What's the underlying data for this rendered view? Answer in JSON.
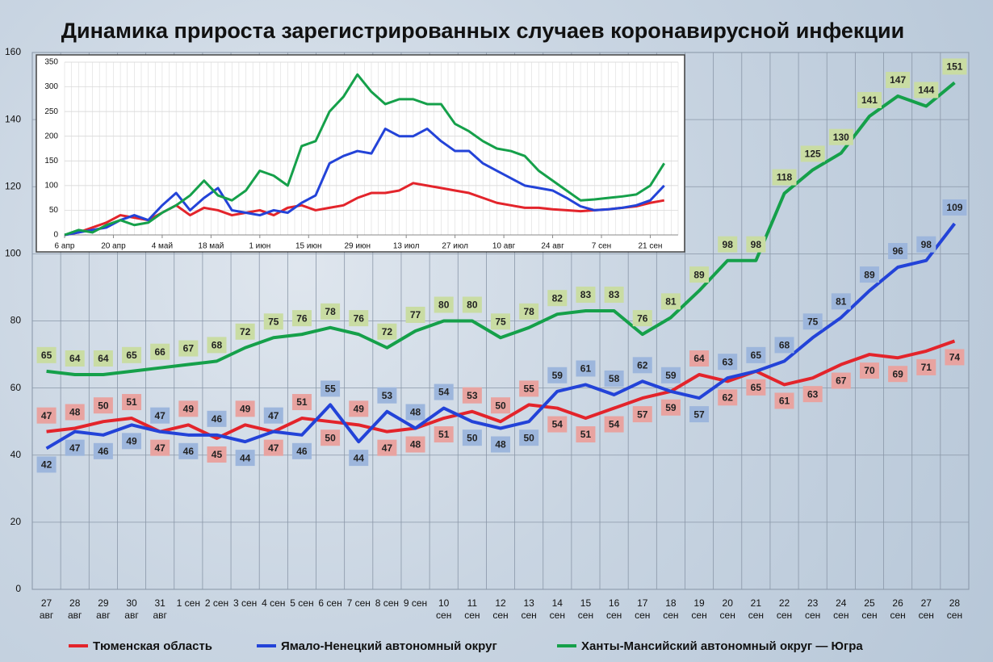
{
  "chart_data": [
    {
      "type": "line",
      "title": "Динамика прироста зарегистрированных случаев коронавирусной инфекции",
      "categories": [
        "27\nавг",
        "28\nавг",
        "29\nавг",
        "30\nавг",
        "31\nавг",
        "1 сен",
        "2 сен",
        "3 сен",
        "4 сен",
        "5 сен",
        "6 сен",
        "7 сен",
        "8 сен",
        "9 сен",
        "10\nсен",
        "11\nсен",
        "12\nсен",
        "13\nсен",
        "14\nсен",
        "15\nсен",
        "16\nсен",
        "17\nсен",
        "18\nсен",
        "19\nсен",
        "20\nсен",
        "21\nсен",
        "22\nсен",
        "23\nсен",
        "24\nсен",
        "25\nсен",
        "26\nсен",
        "27\nсен",
        "28\nсен"
      ],
      "series": [
        {
          "name": "Тюменская область",
          "color": "#e3242b",
          "label_color": "#e8a3a0",
          "values": [
            47,
            48,
            50,
            51,
            47,
            49,
            45,
            49,
            47,
            51,
            50,
            49,
            47,
            48,
            51,
            53,
            50,
            55,
            54,
            51,
            54,
            57,
            59,
            64,
            62,
            65,
            61,
            63,
            67,
            70,
            69,
            71,
            74
          ]
        },
        {
          "name": "Ямало-Ненецкий автономный округ",
          "color": "#2343d8",
          "label_color": "#9db6dc",
          "values": [
            42,
            47,
            46,
            49,
            47,
            46,
            46,
            44,
            47,
            46,
            55,
            44,
            53,
            48,
            54,
            50,
            48,
            50,
            59,
            61,
            58,
            62,
            59,
            57,
            63,
            65,
            68,
            75,
            81,
            89,
            96,
            98,
            109
          ]
        },
        {
          "name": "Ханты-Мансийский автономный округ — Югра",
          "color": "#15a04a",
          "label_color": "#c9dca3",
          "values": [
            65,
            64,
            64,
            65,
            66,
            67,
            68,
            72,
            75,
            76,
            78,
            76,
            72,
            77,
            80,
            80,
            75,
            78,
            82,
            83,
            83,
            76,
            81,
            89,
            98,
            98,
            118,
            125,
            130,
            141,
            147,
            144,
            151
          ]
        }
      ],
      "ylim": [
        0,
        160
      ],
      "yticks": [
        0,
        20,
        40,
        60,
        80,
        100,
        120,
        140,
        160
      ],
      "grid": true,
      "legend": "bottom"
    },
    {
      "type": "line",
      "x": [
        0,
        4,
        8,
        12,
        16,
        20,
        24,
        28,
        32,
        36,
        40,
        44,
        48,
        52,
        56,
        60,
        64,
        68,
        72,
        76,
        80,
        84,
        88,
        92,
        96,
        100,
        104,
        108,
        112,
        116,
        120,
        124,
        128,
        132,
        136,
        140,
        144,
        148,
        152,
        156,
        160,
        164,
        168,
        172
      ],
      "series": [
        {
          "name": "Тюменская область",
          "color": "#e3242b",
          "values": [
            0,
            5,
            15,
            25,
            40,
            35,
            30,
            45,
            60,
            40,
            55,
            50,
            40,
            45,
            50,
            40,
            55,
            60,
            50,
            55,
            60,
            75,
            85,
            85,
            90,
            105,
            100,
            95,
            90,
            85,
            75,
            65,
            60,
            55,
            55,
            52,
            50,
            48,
            50,
            52,
            55,
            58,
            65,
            70
          ]
        },
        {
          "name": "Ямало-Ненецкий автономный округ",
          "color": "#2343d8",
          "values": [
            0,
            5,
            10,
            15,
            30,
            40,
            30,
            60,
            85,
            50,
            75,
            95,
            50,
            45,
            40,
            50,
            45,
            65,
            80,
            145,
            160,
            170,
            165,
            215,
            200,
            200,
            215,
            190,
            170,
            170,
            145,
            130,
            115,
            100,
            95,
            90,
            75,
            58,
            50,
            52,
            55,
            60,
            70,
            100
          ]
        },
        {
          "name": "Ханты-Мансийский автономный округ — Югра",
          "color": "#15a04a",
          "values": [
            0,
            10,
            5,
            20,
            30,
            20,
            25,
            45,
            60,
            80,
            110,
            80,
            70,
            90,
            130,
            120,
            100,
            180,
            190,
            250,
            280,
            325,
            290,
            265,
            275,
            275,
            265,
            265,
            225,
            210,
            190,
            175,
            170,
            160,
            130,
            110,
            90,
            70,
            72,
            75,
            78,
            82,
            100,
            145
          ]
        }
      ],
      "xlim": [
        0,
        176
      ],
      "xticks": [
        {
          "value": 0,
          "label": "6 апр"
        },
        {
          "value": 14,
          "label": "20 апр"
        },
        {
          "value": 28,
          "label": "4 май"
        },
        {
          "value": 42,
          "label": "18 май"
        },
        {
          "value": 56,
          "label": "1 июн"
        },
        {
          "value": 70,
          "label": "15 июн"
        },
        {
          "value": 84,
          "label": "29 июн"
        },
        {
          "value": 98,
          "label": "13 июл"
        },
        {
          "value": 112,
          "label": "27 июл"
        },
        {
          "value": 126,
          "label": "10 авг"
        },
        {
          "value": 140,
          "label": "24 авг"
        },
        {
          "value": 154,
          "label": "7 сен"
        },
        {
          "value": 168,
          "label": "21 сен"
        }
      ],
      "ylim": [
        0,
        350
      ],
      "yticks": [
        0,
        50,
        100,
        150,
        200,
        250,
        300,
        350
      ],
      "grid": true
    }
  ]
}
